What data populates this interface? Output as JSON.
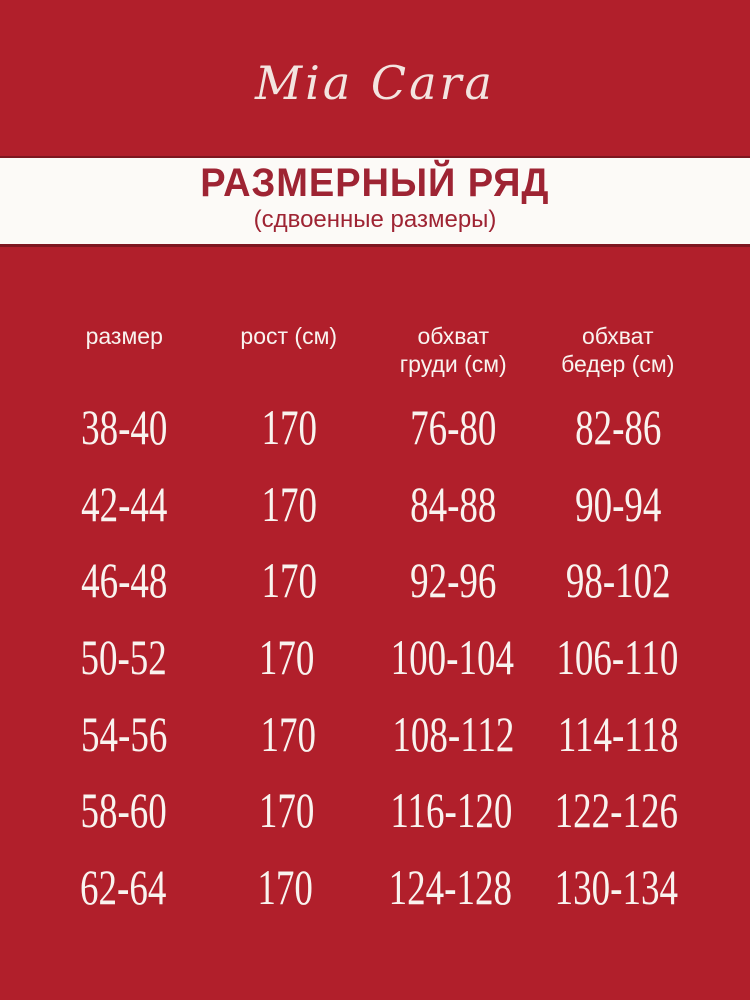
{
  "brand": {
    "logo_text": "Mia Cara"
  },
  "banner": {
    "title": "РАЗМЕРНЫЙ РЯД",
    "subtitle": "(сдвоенные размеры)"
  },
  "size_table": {
    "columns": [
      "размер",
      "рост (см)",
      "обхват груди (см)",
      "обхват бедер (см)"
    ],
    "rows": [
      [
        "38-40",
        "170",
        "76-80",
        "82-86"
      ],
      [
        "42-44",
        "170",
        "84-88",
        "90-94"
      ],
      [
        "46-48",
        "170",
        "92-96",
        "98-102"
      ],
      [
        "50-52",
        "170",
        "100-104",
        "106-110"
      ],
      [
        "54-56",
        "170",
        "108-112",
        "114-118"
      ],
      [
        "58-60",
        "170",
        "116-120",
        "122-126"
      ],
      [
        "62-64",
        "170",
        "124-128",
        "130-134"
      ]
    ]
  },
  "colors": {
    "background": "#B11F2B",
    "banner_background": "#FCFAF7",
    "banner_text": "#9E2433",
    "table_text": "#F9F3EF",
    "logo_text": "#F3E4E0"
  }
}
